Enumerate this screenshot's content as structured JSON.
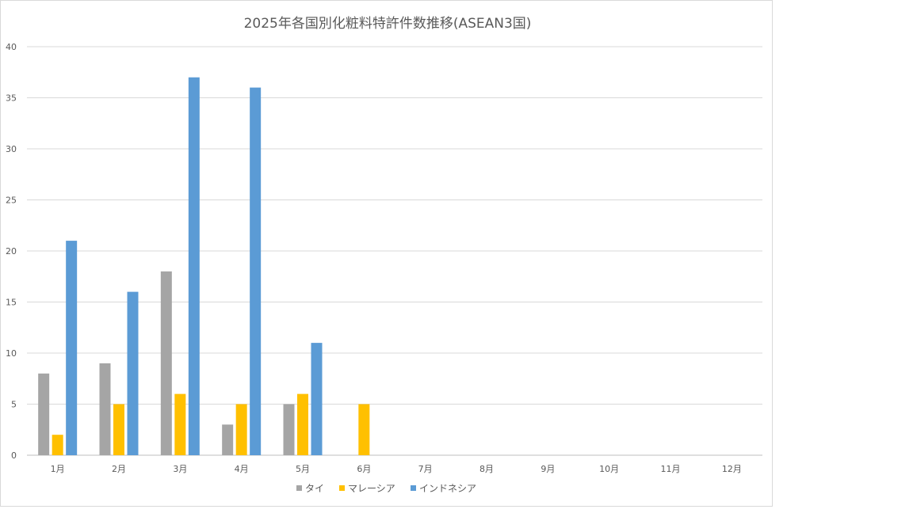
{
  "chart_data": {
    "type": "bar",
    "title": "2025年各国別化粧料特許件数推移(ASEAN3国)",
    "categories": [
      "1月",
      "2月",
      "3月",
      "4月",
      "5月",
      "6月",
      "7月",
      "8月",
      "9月",
      "10月",
      "11月",
      "12月"
    ],
    "series": [
      {
        "name": "タイ",
        "color": "#a5a5a5",
        "values": [
          8,
          9,
          18,
          3,
          5,
          null,
          null,
          null,
          null,
          null,
          null,
          null
        ]
      },
      {
        "name": "マレーシア",
        "color": "#ffc000",
        "values": [
          2,
          5,
          6,
          5,
          6,
          5,
          null,
          null,
          null,
          null,
          null,
          null
        ]
      },
      {
        "name": "インドネシア",
        "color": "#5b9bd5",
        "values": [
          21,
          16,
          37,
          36,
          11,
          null,
          null,
          null,
          null,
          null,
          null,
          null
        ]
      }
    ],
    "y_ticks": [
      "0",
      "5",
      "10",
      "15",
      "20",
      "25",
      "30",
      "35",
      "40"
    ],
    "ylim": [
      0,
      40
    ],
    "grid": true,
    "legend": "bottom"
  }
}
